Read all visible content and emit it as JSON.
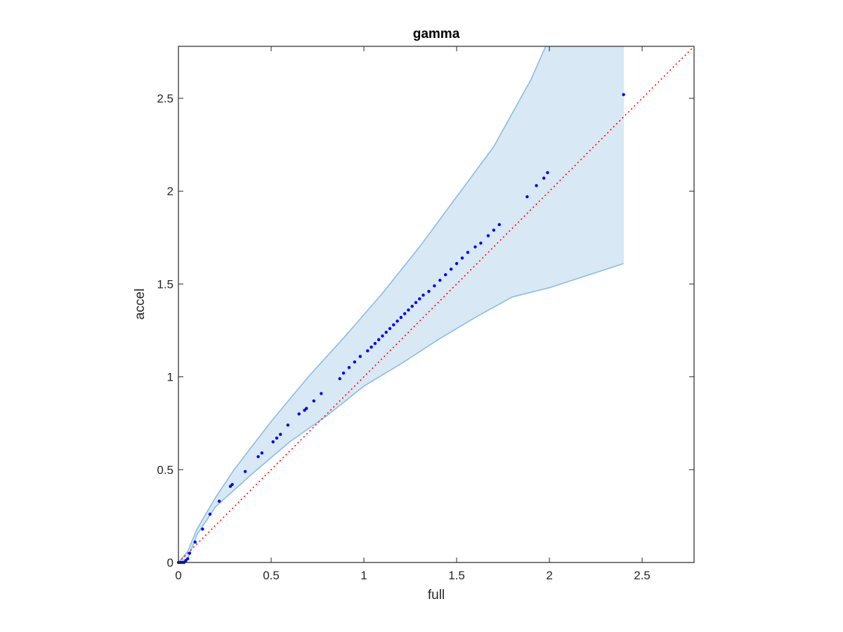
{
  "chart_data": {
    "type": "scatter",
    "title": "gamma",
    "xlabel": "full",
    "ylabel": "accel",
    "xlim": [
      0,
      2.78
    ],
    "ylim": [
      0,
      2.78
    ],
    "xticks": [
      0,
      0.5,
      1,
      1.5,
      2,
      2.5
    ],
    "yticks": [
      0,
      0.5,
      1,
      1.5,
      2,
      2.5
    ],
    "xtick_labels": [
      "0",
      "0.5",
      "1",
      "1.5",
      "2",
      "2.5"
    ],
    "ytick_labels": [
      "0",
      "0.5",
      "1",
      "1.5",
      "2",
      "2.5"
    ],
    "grid": false,
    "colors": {
      "points": "#0000ee",
      "reference_line": "#ff0000",
      "band_fill": "#d8e8f4",
      "band_edge": "#8bbde0",
      "axes": "#262626"
    },
    "confidence_band": {
      "upper": [
        [
          0.0,
          0.0
        ],
        [
          0.05,
          0.06
        ],
        [
          0.1,
          0.18
        ],
        [
          0.2,
          0.35
        ],
        [
          0.3,
          0.5
        ],
        [
          0.5,
          0.76
        ],
        [
          0.7,
          1.0
        ],
        [
          0.9,
          1.22
        ],
        [
          1.1,
          1.45
        ],
        [
          1.3,
          1.7
        ],
        [
          1.5,
          1.97
        ],
        [
          1.7,
          2.24
        ],
        [
          1.9,
          2.6
        ],
        [
          1.98,
          2.78
        ],
        [
          2.4,
          2.78
        ]
      ],
      "lower": [
        [
          2.4,
          1.61
        ],
        [
          2.0,
          1.48
        ],
        [
          1.8,
          1.43
        ],
        [
          1.6,
          1.32
        ],
        [
          1.4,
          1.2
        ],
        [
          1.2,
          1.07
        ],
        [
          1.0,
          0.95
        ],
        [
          0.8,
          0.79
        ],
        [
          0.6,
          0.65
        ],
        [
          0.4,
          0.48
        ],
        [
          0.2,
          0.3
        ],
        [
          0.1,
          0.15
        ],
        [
          0.05,
          0.02
        ],
        [
          0.0,
          0.0
        ]
      ]
    },
    "reference_line": [
      [
        0,
        0
      ],
      [
        2.78,
        2.78
      ]
    ],
    "points": [
      [
        0.0,
        0.0
      ],
      [
        0.01,
        0.0
      ],
      [
        0.02,
        0.0
      ],
      [
        0.03,
        0.0
      ],
      [
        0.04,
        0.01
      ],
      [
        0.05,
        0.02
      ],
      [
        0.06,
        0.05
      ],
      [
        0.09,
        0.11
      ],
      [
        0.13,
        0.18
      ],
      [
        0.17,
        0.26
      ],
      [
        0.22,
        0.33
      ],
      [
        0.28,
        0.41
      ],
      [
        0.29,
        0.42
      ],
      [
        0.36,
        0.49
      ],
      [
        0.43,
        0.57
      ],
      [
        0.45,
        0.59
      ],
      [
        0.51,
        0.65
      ],
      [
        0.53,
        0.67
      ],
      [
        0.55,
        0.69
      ],
      [
        0.59,
        0.74
      ],
      [
        0.65,
        0.8
      ],
      [
        0.68,
        0.82
      ],
      [
        0.69,
        0.83
      ],
      [
        0.73,
        0.87
      ],
      [
        0.77,
        0.91
      ],
      [
        0.87,
        0.99
      ],
      [
        0.89,
        1.02
      ],
      [
        0.92,
        1.05
      ],
      [
        0.95,
        1.08
      ],
      [
        0.98,
        1.11
      ],
      [
        1.02,
        1.14
      ],
      [
        1.04,
        1.16
      ],
      [
        1.06,
        1.18
      ],
      [
        1.08,
        1.2
      ],
      [
        1.1,
        1.22
      ],
      [
        1.12,
        1.24
      ],
      [
        1.14,
        1.26
      ],
      [
        1.16,
        1.28
      ],
      [
        1.18,
        1.3
      ],
      [
        1.2,
        1.32
      ],
      [
        1.22,
        1.34
      ],
      [
        1.24,
        1.36
      ],
      [
        1.26,
        1.38
      ],
      [
        1.28,
        1.4
      ],
      [
        1.3,
        1.42
      ],
      [
        1.32,
        1.44
      ],
      [
        1.35,
        1.46
      ],
      [
        1.38,
        1.49
      ],
      [
        1.41,
        1.52
      ],
      [
        1.44,
        1.55
      ],
      [
        1.47,
        1.58
      ],
      [
        1.5,
        1.61
      ],
      [
        1.53,
        1.64
      ],
      [
        1.56,
        1.67
      ],
      [
        1.6,
        1.7
      ],
      [
        1.63,
        1.72
      ],
      [
        1.67,
        1.76
      ],
      [
        1.7,
        1.79
      ],
      [
        1.73,
        1.82
      ],
      [
        1.88,
        1.97
      ],
      [
        1.93,
        2.03
      ],
      [
        1.97,
        2.07
      ],
      [
        1.99,
        2.1
      ],
      [
        2.4,
        2.52
      ]
    ]
  }
}
